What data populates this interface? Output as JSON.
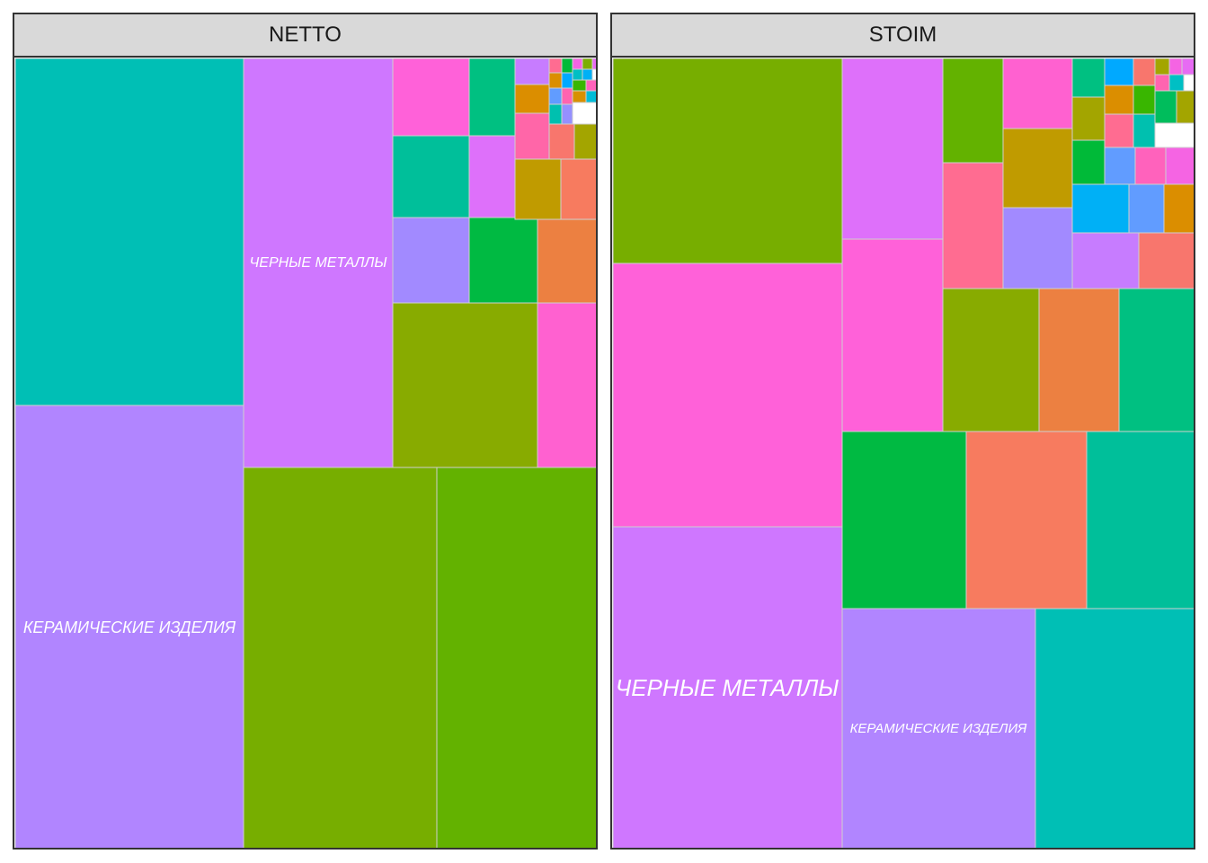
{
  "chart_data": [
    {
      "type": "treemap",
      "facet": "NETTO",
      "labeled_tiles": [
        "КЕРАМИЧЕСКИЕ ИЗДЕЛИЯ",
        "ЧЕРНЫЕ МЕТАЛЛЫ"
      ],
      "tiles": [
        {
          "label": "",
          "color": "#00BFB5",
          "value": 97785
        },
        {
          "label": "КЕРАМИЧЕСКИЕ ИЗДЕЛИЯ",
          "color": "#B185FF",
          "value": 124710
        },
        {
          "label": "ЧЕРНЫЕ МЕТАЛЛЫ",
          "color": "#CF77FF",
          "value": 75105
        },
        {
          "label": "",
          "color": "#77AE00",
          "value": 91160
        },
        {
          "label": "",
          "color": "#63B200",
          "value": 75770
        },
        {
          "label": "",
          "color": "#FF61D9",
          "value": 7140
        },
        {
          "label": "",
          "color": "#00C081",
          "value": 4290
        },
        {
          "label": "",
          "color": "#00BF9A",
          "value": 7650
        },
        {
          "label": "",
          "color": "#DE70FA",
          "value": 4680
        },
        {
          "label": "",
          "color": "#A28AFF",
          "value": 7820
        },
        {
          "label": "",
          "color": "#00BA42",
          "value": 7380
        },
        {
          "label": "",
          "color": "#EC8041",
          "value": 6200
        },
        {
          "label": "",
          "color": "#88AB00",
          "value": 29120
        },
        {
          "label": "",
          "color": "#FF61D0",
          "value": 11020
        },
        {
          "label": "",
          "color": "#C09B00",
          "value": 3380
        },
        {
          "label": "",
          "color": "#F77B5F",
          "value": 2730
        },
        {
          "label": "",
          "color": "#FF66A8",
          "value": 1900
        },
        {
          "label": "",
          "color": "#F8766D",
          "value": 1320
        },
        {
          "label": "",
          "color": "#A3A500",
          "value": 1040
        },
        {
          "label": "",
          "color": "#C77CFF",
          "value": 1110
        },
        {
          "label": "",
          "color": "#DB8E00",
          "value": 1040
        },
        {
          "label": "",
          "color": "#FF6C91",
          "value": 760
        },
        {
          "label": "",
          "color": "#DB8E00",
          "value": 560
        },
        {
          "label": "",
          "color": "#619CFF",
          "value": 560
        },
        {
          "label": "",
          "color": "#00C0AF",
          "value": 520
        },
        {
          "label": "",
          "color": "#00BA38",
          "value": 400
        },
        {
          "label": "",
          "color": "#00A9FF",
          "value": 300
        },
        {
          "label": "",
          "color": "#FF64B0",
          "value": 280
        },
        {
          "label": "",
          "color": "#9590FF",
          "value": 260
        },
        {
          "label": "",
          "color": "#F564E3",
          "value": 240
        },
        {
          "label": "",
          "color": "#00BFC4",
          "value": 230
        },
        {
          "label": "",
          "color": "#7CAE00",
          "value": 220
        },
        {
          "label": "",
          "color": "#00B0F6",
          "value": 200
        },
        {
          "label": "",
          "color": "#E76BF3",
          "value": 180
        },
        {
          "label": "",
          "color": "#39B600",
          "value": 160
        },
        {
          "label": "",
          "color": "#FF62BC",
          "value": 150
        },
        {
          "label": "",
          "color": "#D89000",
          "value": 140
        },
        {
          "label": "",
          "color": "#00BCD8",
          "value": 120
        }
      ]
    },
    {
      "type": "treemap",
      "facet": "STOIM",
      "labeled_tiles": [
        "ЧЕРНЫЕ МЕТАЛЛЫ",
        "КЕРАМИЧЕСКИЕ ИЗДЕЛИЯ"
      ],
      "tiles": [
        {
          "label": "",
          "color": "#77AE00",
          "value": 58140
        },
        {
          "label": "",
          "color": "#FF61D9",
          "value": 74630
        },
        {
          "label": "ЧЕРНЫЕ МЕТАЛЛЫ",
          "color": "#CF77FF",
          "value": 91770
        },
        {
          "label": "",
          "color": "#DE70FA",
          "value": 22400
        },
        {
          "label": "",
          "color": "#FF61D9",
          "value": 23760
        },
        {
          "label": "",
          "color": "#00BA42",
          "value": 27260
        },
        {
          "label": "",
          "color": "#F77B5F",
          "value": 26400
        },
        {
          "label": "",
          "color": "#00BF9A",
          "value": 24170
        },
        {
          "label": "КЕРАМИЧЕСКИЕ ИЗДЕЛИЯ",
          "color": "#B185FF",
          "value": 57190
        },
        {
          "label": "",
          "color": "#00BFB5",
          "value": 47850
        },
        {
          "label": "",
          "color": "#63B200",
          "value": 7800
        },
        {
          "label": "",
          "color": "#FF6C91",
          "value": 9250
        },
        {
          "label": "",
          "color": "#FF61D0",
          "value": 5300
        },
        {
          "label": "",
          "color": "#C09B00",
          "value": 6720
        },
        {
          "label": "",
          "color": "#A28AFF",
          "value": 6900
        },
        {
          "label": "",
          "color": "#88AB00",
          "value": 16900
        },
        {
          "label": "",
          "color": "#EC8041",
          "value": 14100
        },
        {
          "label": "",
          "color": "#00C081",
          "value": 13600
        },
        {
          "label": "",
          "color": "#00C081",
          "value": 1440
        },
        {
          "label": "",
          "color": "#A3A500",
          "value": 1800
        },
        {
          "label": "",
          "color": "#00BA38",
          "value": 1750
        },
        {
          "label": "",
          "color": "#00B0F6",
          "value": 3380
        },
        {
          "label": "",
          "color": "#619CFF",
          "value": 2140
        },
        {
          "label": "",
          "color": "#DB8E00",
          "value": 1960
        },
        {
          "label": "",
          "color": "#C77CFF",
          "value": 4430
        },
        {
          "label": "",
          "color": "#F8766D",
          "value": 3880
        },
        {
          "label": "",
          "color": "#00A9FF",
          "value": 1050
        },
        {
          "label": "",
          "color": "#DB8E00",
          "value": 1050
        },
        {
          "label": "",
          "color": "#F8766D",
          "value": 760
        },
        {
          "label": "",
          "color": "#A3A500",
          "value": 560
        },
        {
          "label": "",
          "color": "#F564E3",
          "value": 380
        },
        {
          "label": "",
          "color": "#E76BF3",
          "value": 280
        },
        {
          "label": "",
          "color": "#39B600",
          "value": 1000
        },
        {
          "label": "",
          "color": "#FF64B0",
          "value": 800
        },
        {
          "label": "",
          "color": "#00BFC4",
          "value": 400
        },
        {
          "label": "",
          "color": "#FF6C91",
          "value": 1200
        },
        {
          "label": "",
          "color": "#00C0AF",
          "value": 1180
        },
        {
          "label": "",
          "color": "#00BD5C",
          "value": 1180
        },
        {
          "label": "",
          "color": "#A3A500",
          "value": 1180
        },
        {
          "label": "",
          "color": "#619CFF",
          "value": 1300
        },
        {
          "label": "",
          "color": "#FF62BC",
          "value": 1300
        },
        {
          "label": "",
          "color": "#F564E3",
          "value": 1300
        }
      ]
    }
  ]
}
